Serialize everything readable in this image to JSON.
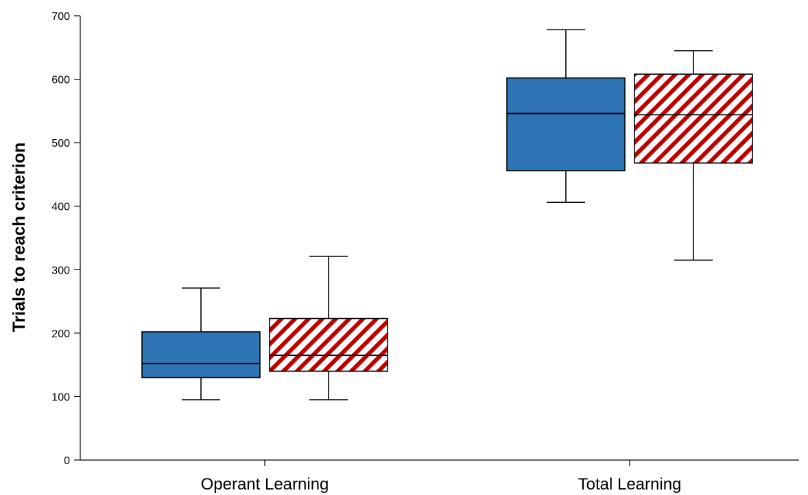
{
  "chart_data": {
    "type": "box",
    "title": "",
    "xlabel": "",
    "ylabel": "Trials to reach criterion",
    "ylim": [
      0,
      700
    ],
    "yticks": [
      0,
      100,
      200,
      300,
      400,
      500,
      600,
      700
    ],
    "grid": false,
    "legend": "none",
    "categories": [
      "Operant Learning",
      "Total Learning"
    ],
    "series": [
      {
        "fill": "#2E75B6",
        "pattern": "solid",
        "boxes": [
          {
            "min": 95,
            "q1": 130,
            "median": 152,
            "q3": 202,
            "max": 271
          },
          {
            "min": 406,
            "q1": 456,
            "median": 546,
            "q3": 602,
            "max": 678
          }
        ]
      },
      {
        "fill": "#C00000",
        "pattern": "diagonal-hatch",
        "boxes": [
          {
            "min": 95,
            "q1": 140,
            "median": 165,
            "q3": 223,
            "max": 321
          },
          {
            "min": 315,
            "q1": 468,
            "median": 544,
            "q3": 608,
            "max": 645
          }
        ]
      }
    ]
  }
}
